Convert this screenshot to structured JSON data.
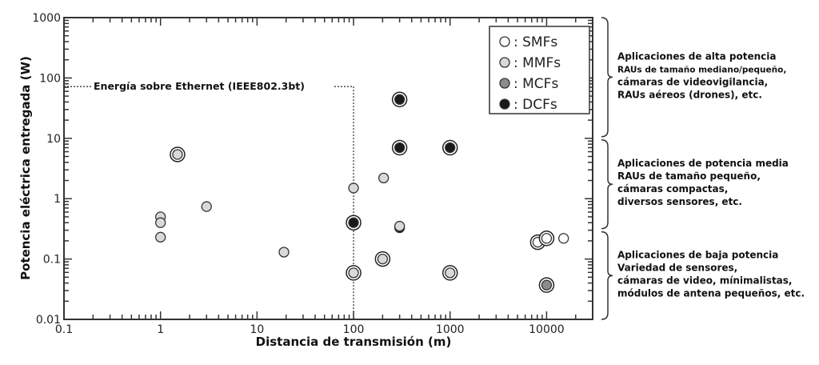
{
  "chart_data": {
    "type": "scatter",
    "title": "",
    "xlabel": "Distancia de transmisión (m)",
    "ylabel": "Potencia eléctrica entregada (W)",
    "xscale": "log",
    "yscale": "log",
    "xlim": [
      0.1,
      30000
    ],
    "ylim": [
      0.01,
      1000
    ],
    "x_ticks": [
      "0.1",
      "1",
      "10",
      "100",
      "1000",
      "10000"
    ],
    "y_ticks": [
      "0.01",
      "0.1",
      "1",
      "10",
      "100",
      "1000"
    ],
    "grid": false,
    "legend_position": "top-right",
    "legend": [
      {
        "key": "SMF",
        "label": ": SMFs",
        "color": "#ffffff"
      },
      {
        "key": "MMF",
        "label": ": MMFs",
        "color": "#d9d9d9"
      },
      {
        "key": "MCF",
        "label": ": MCFs",
        "color": "#8c8c8c"
      },
      {
        "key": "DCF",
        "label": ": DCFs",
        "color": "#1a1a1a"
      }
    ],
    "points": [
      {
        "type": "MMF",
        "x": 1.5,
        "y": 5.4,
        "ringed": true
      },
      {
        "type": "MMF",
        "x": 1,
        "y": 0.5,
        "ringed": false
      },
      {
        "type": "MMF",
        "x": 1,
        "y": 0.4,
        "ringed": false
      },
      {
        "type": "MMF",
        "x": 1,
        "y": 0.23,
        "ringed": false
      },
      {
        "type": "MMF",
        "x": 3,
        "y": 0.74,
        "ringed": false
      },
      {
        "type": "MMF",
        "x": 19,
        "y": 0.13,
        "ringed": false
      },
      {
        "type": "MMF",
        "x": 100,
        "y": 1.5,
        "ringed": false
      },
      {
        "type": "DCF",
        "x": 100,
        "y": 0.4,
        "ringed": true
      },
      {
        "type": "MMF",
        "x": 100,
        "y": 0.059,
        "ringed": true
      },
      {
        "type": "MMF",
        "x": 205,
        "y": 2.2,
        "ringed": false
      },
      {
        "type": "MMF",
        "x": 200,
        "y": 0.1,
        "ringed": true
      },
      {
        "type": "DCF",
        "x": 300,
        "y": 44,
        "ringed": true
      },
      {
        "type": "DCF",
        "x": 300,
        "y": 7,
        "ringed": true
      },
      {
        "type": "DCF",
        "x": 300,
        "y": 0.33,
        "ringed": false
      },
      {
        "type": "MMF",
        "x": 300,
        "y": 0.35,
        "ringed": false
      },
      {
        "type": "DCF",
        "x": 1000,
        "y": 7,
        "ringed": true
      },
      {
        "type": "MMF",
        "x": 1000,
        "y": 0.059,
        "ringed": true
      },
      {
        "type": "SMF",
        "x": 8100,
        "y": 0.19,
        "ringed": true
      },
      {
        "type": "SMF",
        "x": 10000,
        "y": 0.22,
        "ringed": true
      },
      {
        "type": "SMF",
        "x": 15000,
        "y": 0.22,
        "ringed": false
      },
      {
        "type": "MCF",
        "x": 10000,
        "y": 0.037,
        "ringed": true
      }
    ],
    "annotations": {
      "poe_label": "Energía sobre Ethernet (IEEE802.3bt)",
      "poe_power": 72,
      "poe_distance": 100
    }
  },
  "side_panels": [
    {
      "lines": [
        "Aplicaciones de alta potencia",
        "RAUs de tamaño mediano/pequeño,",
        "cámaras de videovigilancia,",
        "RAUs aéreos (drones), etc."
      ],
      "range": [
        10,
        1000
      ]
    },
    {
      "lines": [
        "Aplicaciones de potencia media",
        "RAUs de tamaño pequeño,",
        "cámaras compactas,",
        "diversos sensores, etc."
      ],
      "range": [
        0.3,
        10
      ]
    },
    {
      "lines": [
        "Aplicaciones de baja potencia",
        "Variedad de sensores,",
        "cámaras de video, mínimalistas,",
        "módulos de antena pequeños, etc."
      ],
      "range": [
        0.01,
        0.3
      ]
    }
  ]
}
